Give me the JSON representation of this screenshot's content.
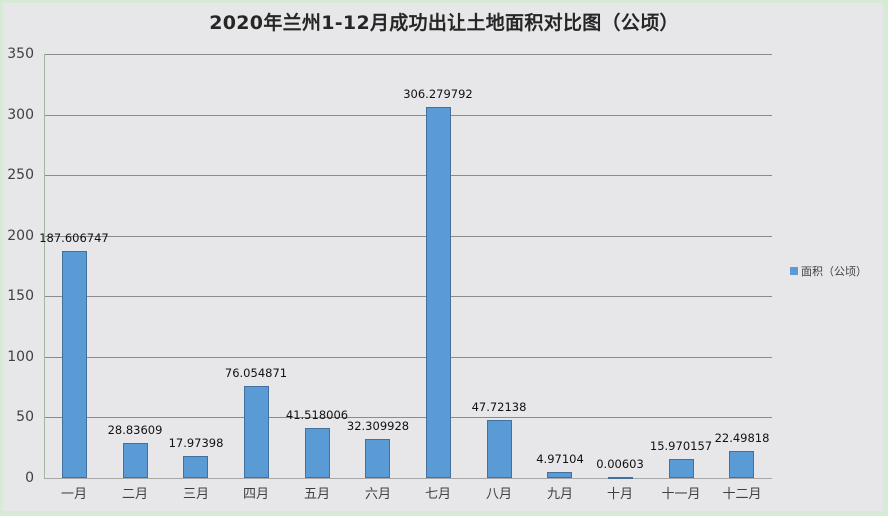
{
  "title": "2020年兰州1-12月成功出让土地面积对比图（公顷）",
  "legend": {
    "label": "面积（公顷）",
    "color": "#5b9bd5"
  },
  "y_axis": {
    "ticks": [
      "0",
      "50",
      "100",
      "150",
      "200",
      "250",
      "300",
      "350"
    ]
  },
  "chart_data": {
    "type": "bar",
    "title": "2020年兰州1-12月成功出让土地面积对比图（公顷）",
    "xlabel": "",
    "ylabel": "",
    "categories": [
      "一月",
      "二月",
      "三月",
      "四月",
      "五月",
      "六月",
      "七月",
      "八月",
      "九月",
      "十月",
      "十一月",
      "十二月"
    ],
    "series": [
      {
        "name": "面积（公顷）",
        "color": "#5b9bd5",
        "values": [
          187.606747,
          28.83609,
          17.97398,
          76.054871,
          41.518006,
          32.309928,
          306.279792,
          47.72138,
          4.97104,
          0.00603,
          15.970157,
          22.49818
        ],
        "labels": [
          "187.606747",
          "28.83609",
          "17.97398",
          "76.054871",
          "41.518006",
          "32.309928",
          "306.279792",
          "47.72138",
          "4.97104",
          "0.00603",
          "15.970157",
          "22.49818"
        ]
      }
    ],
    "ylim": [
      0,
      350
    ],
    "yticks": [
      0,
      50,
      100,
      150,
      200,
      250,
      300,
      350
    ],
    "grid": true,
    "legend_position": "right"
  }
}
